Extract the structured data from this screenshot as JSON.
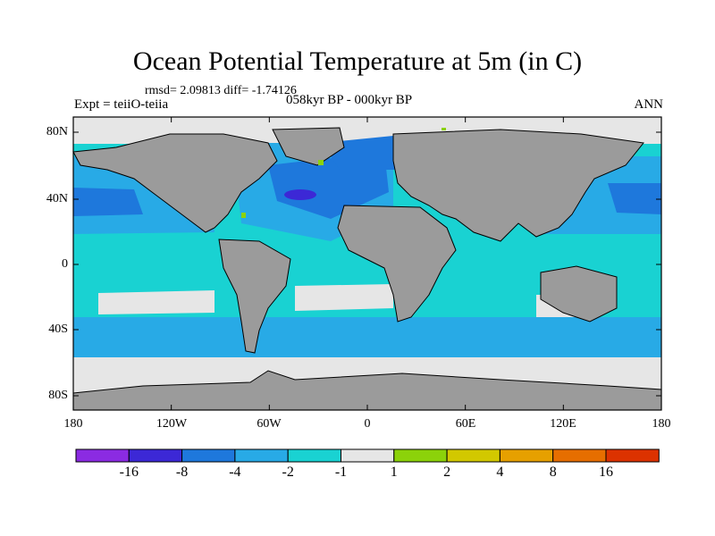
{
  "title": "Ocean Potential Temperature at 5m (in C)",
  "stats_text": "rmsd= 2.09813 diff= -1.74126",
  "experiment_label": "Expt = teiiO-teiia",
  "period_label": "058kyr BP - 000kyr BP",
  "season_label": "ANN",
  "lat_ticks": [
    "80N",
    "40N",
    "0",
    "40S",
    "80S"
  ],
  "lon_ticks": [
    "180",
    "120W",
    "60W",
    "0",
    "60E",
    "120E",
    "180"
  ],
  "colorbar": {
    "colors": [
      "#8b2be2",
      "#3c28d6",
      "#1e78dc",
      "#28aae6",
      "#19d2d2",
      "#e6e6e6",
      "#8cd20a",
      "#d2c800",
      "#e6a000",
      "#e66e00",
      "#dc3200"
    ],
    "labels": [
      "-16",
      "-8",
      "-4",
      "-2",
      "-1",
      "1",
      "2",
      "4",
      "8",
      "16"
    ]
  },
  "palette": {
    "land": "#9b9b9b",
    "ocean_base": "#19d2d2",
    "cool": "#28aae6",
    "colder": "#1e78dc",
    "coldest": "#3c28d6",
    "neutral": "#e6e6e6",
    "warm": "#8cd20a"
  }
}
